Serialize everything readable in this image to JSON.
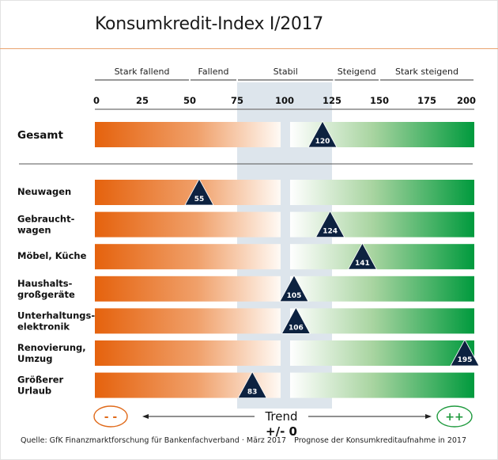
{
  "chart_data": {
    "type": "bar",
    "title": "Konsumkredit-Index I/2017",
    "xlim": [
      0,
      200
    ],
    "ticks": [
      0,
      25,
      50,
      75,
      100,
      125,
      150,
      175,
      200
    ],
    "stable_range": [
      75,
      125
    ],
    "categories_scale": [
      {
        "label": "Stark fallend",
        "range": [
          0,
          49
        ]
      },
      {
        "label": "Fallend",
        "range": [
          50,
          74
        ]
      },
      {
        "label": "Stabil",
        "range": [
          75,
          125
        ]
      },
      {
        "label": "Steigend",
        "range": [
          126,
          149
        ]
      },
      {
        "label": "Stark steigend",
        "range": [
          150,
          200
        ]
      }
    ],
    "total": {
      "label": "Gesamt",
      "value": 120
    },
    "rows": [
      {
        "label_lines": [
          "Neuwagen"
        ],
        "value": 55
      },
      {
        "label_lines": [
          "Gebraucht-",
          "wagen"
        ],
        "value": 124
      },
      {
        "label_lines": [
          "Möbel, Küche"
        ],
        "value": 141
      },
      {
        "label_lines": [
          "Haushalts-",
          "großgeräte"
        ],
        "value": 105
      },
      {
        "label_lines": [
          "Unterhaltungs-",
          "elektronik"
        ],
        "value": 106
      },
      {
        "label_lines": [
          "Renovierung,",
          "Umzug"
        ],
        "value": 195
      },
      {
        "label_lines": [
          "Größerer",
          "Urlaub"
        ],
        "value": 83
      }
    ],
    "legend": {
      "negative_symbol": "- -",
      "positive_symbol": "++",
      "trend_label": "Trend",
      "trend_value": "+/- 0"
    }
  },
  "footer": {
    "source": "Quelle: GfK Finanzmarktforschung für Bankenfachverband · März 2017",
    "note": "Prognose der Konsumkreditaufnahme in 2017"
  },
  "colors": {
    "negative": "#e5620d",
    "positive": "#009a3d",
    "marker": "#0d2240",
    "stable_band": "#dde5ec",
    "title_rule": "#e9a36f"
  }
}
